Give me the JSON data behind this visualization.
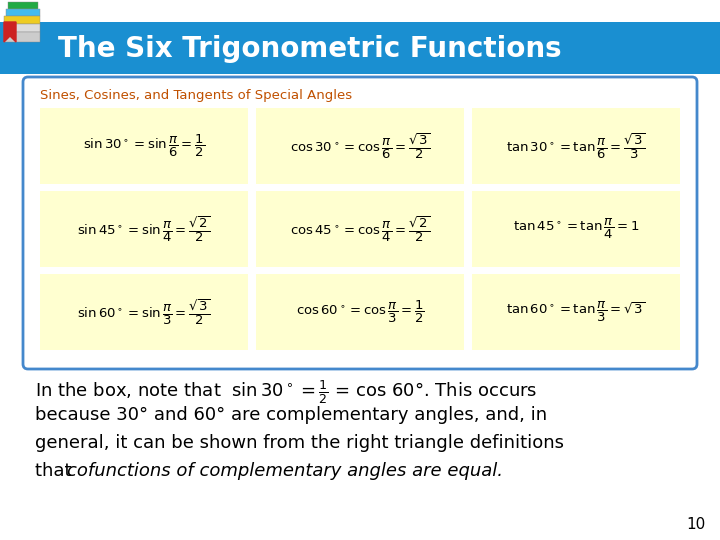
{
  "title": "The Six Trigonometric Functions",
  "title_bg": "#1a8fd1",
  "title_color": "#ffffff",
  "box_title": "Sines, Cosines, and Tangents of Special Angles",
  "box_title_color": "#c05000",
  "box_bg": "#ffffff",
  "box_border": "#4488cc",
  "cell_bg": "#ffffd0",
  "rows": [
    {
      "col1": "$\\sin 30^\\circ = \\sin\\dfrac{\\pi}{6} = \\dfrac{1}{2}$",
      "col2": "$\\cos 30^\\circ = \\cos\\dfrac{\\pi}{6} = \\dfrac{\\sqrt{3}}{2}$",
      "col3": "$\\tan 30^\\circ = \\tan\\dfrac{\\pi}{6} = \\dfrac{\\sqrt{3}}{3}$"
    },
    {
      "col1": "$\\sin 45^\\circ = \\sin\\dfrac{\\pi}{4} = \\dfrac{\\sqrt{2}}{2}$",
      "col2": "$\\cos 45^\\circ = \\cos\\dfrac{\\pi}{4} = \\dfrac{\\sqrt{2}}{2}$",
      "col3": "$\\tan 45^\\circ = \\tan\\dfrac{\\pi}{4} = 1$"
    },
    {
      "col1": "$\\sin 60^\\circ = \\sin\\dfrac{\\pi}{3} = \\dfrac{\\sqrt{3}}{2}$",
      "col2": "$\\cos 60^\\circ = \\cos\\dfrac{\\pi}{3} = \\dfrac{1}{2}$",
      "col3": "$\\tan 60^\\circ = \\tan\\dfrac{\\pi}{3} = \\sqrt{3}$"
    }
  ],
  "body_lines": [
    "In the box, note that  $\\sin 30^\\circ = \\frac{1}{2}$ = cos 60°. This occurs",
    "because 30° and 60° are complementary angles, and, in",
    "general, it can be shown from the right triangle definitions"
  ],
  "body_line4_normal": "that ",
  "body_line4_italic": "cofunctions of complementary angles are equal.",
  "page_num": "10",
  "bg_color": "#f0f0f0",
  "slide_bg": "#ffffff"
}
